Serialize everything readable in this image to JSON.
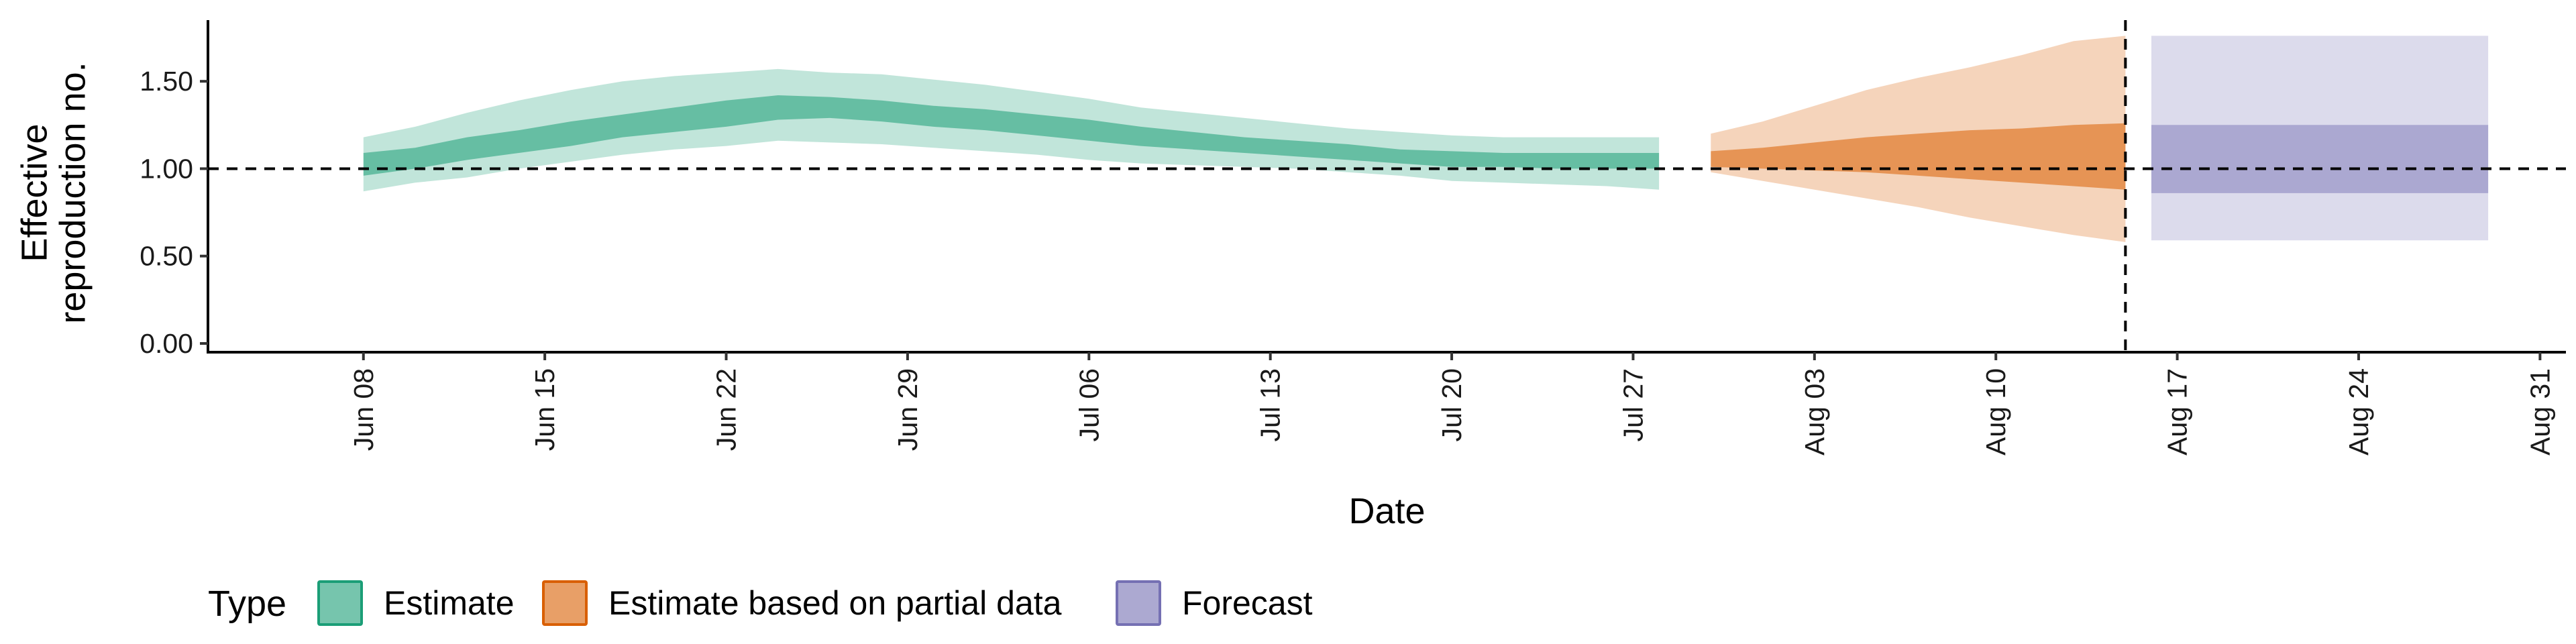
{
  "chart_data": {
    "type": "area",
    "xlabel": "Date",
    "ylabel_lines": [
      "Effective",
      "reproduction no."
    ],
    "ylim": [
      -0.05,
      1.85
    ],
    "yticks": [
      {
        "value": 0.0,
        "label": "0.00"
      },
      {
        "value": 0.5,
        "label": "0.50"
      },
      {
        "value": 1.0,
        "label": "1.00"
      },
      {
        "value": 1.5,
        "label": "1.50"
      }
    ],
    "xlim": [
      "2020-06-02",
      "2020-09-01"
    ],
    "xticks": [
      {
        "date": "2020-06-08",
        "label": "Jun 08"
      },
      {
        "date": "2020-06-15",
        "label": "Jun 15"
      },
      {
        "date": "2020-06-22",
        "label": "Jun 22"
      },
      {
        "date": "2020-06-29",
        "label": "Jun 29"
      },
      {
        "date": "2020-07-06",
        "label": "Jul 06"
      },
      {
        "date": "2020-07-13",
        "label": "Jul 13"
      },
      {
        "date": "2020-07-20",
        "label": "Jul 20"
      },
      {
        "date": "2020-07-27",
        "label": "Jul 27"
      },
      {
        "date": "2020-08-03",
        "label": "Aug 03"
      },
      {
        "date": "2020-08-10",
        "label": "Aug 10"
      },
      {
        "date": "2020-08-17",
        "label": "Aug 17"
      },
      {
        "date": "2020-08-24",
        "label": "Aug 24"
      },
      {
        "date": "2020-08-31",
        "label": "Aug 31"
      }
    ],
    "reference_line": {
      "y": 1.0,
      "style": "dashed"
    },
    "vertical_line": {
      "date": "2020-08-15",
      "style": "dashed"
    },
    "grid": false,
    "legend": {
      "position": "bottom-left",
      "title": "Type",
      "items": [
        {
          "label": "Estimate",
          "color": "#1b9e77"
        },
        {
          "label": "Estimate based on partial data",
          "color": "#d95f02"
        },
        {
          "label": "Forecast",
          "color": "#7570b3"
        }
      ]
    },
    "series": [
      {
        "name": "Estimate",
        "color": "#1b9e77",
        "x": [
          "2020-06-08",
          "2020-06-10",
          "2020-06-12",
          "2020-06-14",
          "2020-06-16",
          "2020-06-18",
          "2020-06-20",
          "2020-06-22",
          "2020-06-24",
          "2020-06-26",
          "2020-06-28",
          "2020-06-30",
          "2020-07-02",
          "2020-07-04",
          "2020-07-06",
          "2020-07-08",
          "2020-07-10",
          "2020-07-12",
          "2020-07-14",
          "2020-07-16",
          "2020-07-18",
          "2020-07-20",
          "2020-07-22",
          "2020-07-24",
          "2020-07-26",
          "2020-07-28"
        ],
        "lower_90": [
          0.87,
          0.92,
          0.95,
          1.0,
          1.04,
          1.08,
          1.11,
          1.13,
          1.16,
          1.15,
          1.14,
          1.12,
          1.1,
          1.08,
          1.05,
          1.03,
          1.02,
          1.01,
          1.0,
          0.98,
          0.96,
          0.93,
          0.92,
          0.91,
          0.9,
          0.88
        ],
        "lower_50": [
          0.96,
          1.0,
          1.05,
          1.09,
          1.13,
          1.18,
          1.21,
          1.24,
          1.28,
          1.29,
          1.27,
          1.24,
          1.22,
          1.19,
          1.16,
          1.13,
          1.11,
          1.09,
          1.07,
          1.05,
          1.03,
          1.01,
          1.01,
          1.0,
          1.0,
          1.0
        ],
        "upper_50": [
          1.09,
          1.12,
          1.18,
          1.22,
          1.27,
          1.31,
          1.35,
          1.39,
          1.42,
          1.41,
          1.39,
          1.36,
          1.34,
          1.31,
          1.28,
          1.24,
          1.21,
          1.18,
          1.16,
          1.14,
          1.11,
          1.1,
          1.09,
          1.09,
          1.09,
          1.09
        ],
        "upper_90": [
          1.18,
          1.24,
          1.32,
          1.39,
          1.45,
          1.5,
          1.53,
          1.55,
          1.57,
          1.55,
          1.54,
          1.51,
          1.48,
          1.44,
          1.4,
          1.35,
          1.32,
          1.29,
          1.26,
          1.23,
          1.21,
          1.19,
          1.18,
          1.18,
          1.18,
          1.18
        ]
      },
      {
        "name": "Estimate based on partial data",
        "color": "#d95f02",
        "x": [
          "2020-07-30",
          "2020-08-01",
          "2020-08-03",
          "2020-08-05",
          "2020-08-07",
          "2020-08-09",
          "2020-08-11",
          "2020-08-13",
          "2020-08-15"
        ],
        "lower_90": [
          0.98,
          0.93,
          0.88,
          0.83,
          0.78,
          0.72,
          0.67,
          0.62,
          0.58
        ],
        "lower_50": [
          1.01,
          1.0,
          0.99,
          0.98,
          0.96,
          0.94,
          0.92,
          0.9,
          0.88
        ],
        "upper_50": [
          1.1,
          1.12,
          1.15,
          1.18,
          1.2,
          1.22,
          1.23,
          1.25,
          1.26
        ],
        "upper_90": [
          1.2,
          1.27,
          1.36,
          1.45,
          1.52,
          1.58,
          1.65,
          1.73,
          1.76
        ]
      },
      {
        "name": "Forecast",
        "color": "#7570b3",
        "x": [
          "2020-08-16",
          "2020-08-29"
        ],
        "lower_90": [
          0.59,
          0.59
        ],
        "lower_50": [
          0.86,
          0.86
        ],
        "upper_50": [
          1.25,
          1.25
        ],
        "upper_90": [
          1.76,
          1.76
        ]
      }
    ]
  }
}
